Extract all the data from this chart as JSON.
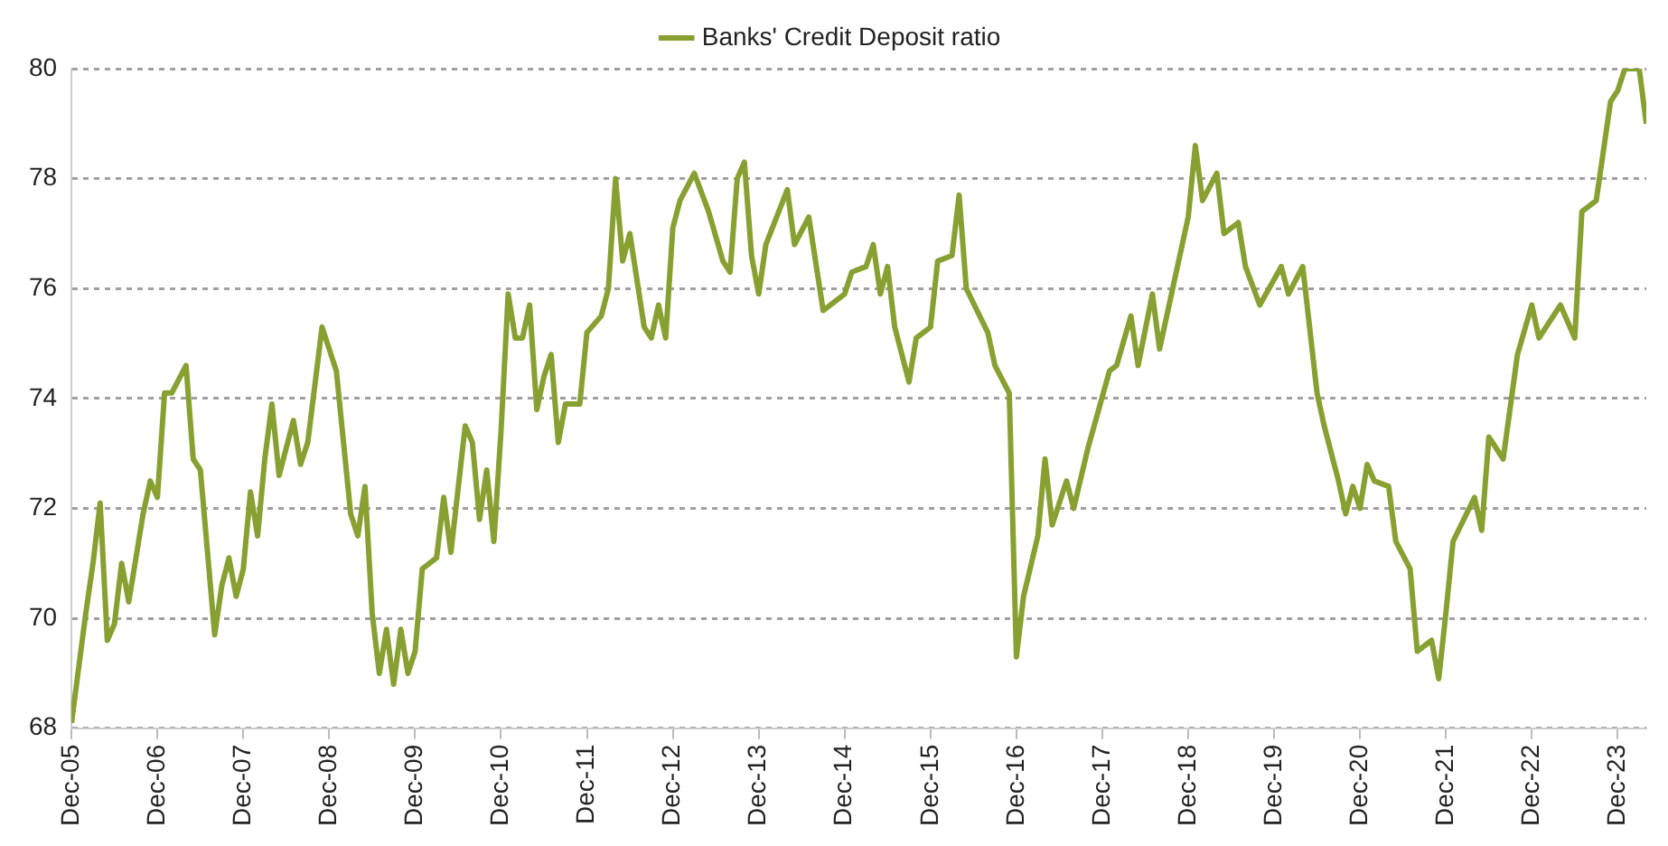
{
  "chart_data": {
    "type": "line",
    "legend": "top",
    "grid": "y",
    "marker": "none",
    "line_style": "solid",
    "x": [
      "2005-12",
      "2006-02",
      "2006-03",
      "2006-04",
      "2006-05",
      "2006-06",
      "2006-07",
      "2006-08",
      "2006-10",
      "2006-11",
      "2006-12",
      "2007-01",
      "2007-02",
      "2007-04",
      "2007-05",
      "2007-06",
      "2007-08",
      "2007-09",
      "2007-10",
      "2007-11",
      "2007-12",
      "2008-01",
      "2008-02",
      "2008-03",
      "2008-04",
      "2008-05",
      "2008-07",
      "2008-08",
      "2008-09",
      "2008-11",
      "2008-12",
      "2009-01",
      "2009-03",
      "2009-04",
      "2009-05",
      "2009-06",
      "2009-07",
      "2009-08",
      "2009-09",
      "2009-10",
      "2009-11",
      "2009-12",
      "2010-01",
      "2010-03",
      "2010-04",
      "2010-05",
      "2010-07",
      "2010-08",
      "2010-09",
      "2010-10",
      "2010-11",
      "2010-12",
      "2011-01",
      "2011-02",
      "2011-03",
      "2011-04",
      "2011-05",
      "2011-06",
      "2011-07",
      "2011-08",
      "2011-09",
      "2011-11",
      "2011-12",
      "2012-02",
      "2012-03",
      "2012-04",
      "2012-05",
      "2012-06",
      "2012-08",
      "2012-09",
      "2012-10",
      "2012-11",
      "2012-12",
      "2013-01",
      "2013-03",
      "2013-05",
      "2013-07",
      "2013-08",
      "2013-09",
      "2013-10",
      "2013-11",
      "2013-12",
      "2014-01",
      "2014-04",
      "2014-05",
      "2014-07",
      "2014-09",
      "2014-12",
      "2015-01",
      "2015-03",
      "2015-04",
      "2015-05",
      "2015-06",
      "2015-07",
      "2015-09",
      "2015-10",
      "2015-12",
      "2016-01",
      "2016-03",
      "2016-04",
      "2016-05",
      "2016-08",
      "2016-09",
      "2016-11",
      "2016-12",
      "2017-01",
      "2017-03",
      "2017-04",
      "2017-05",
      "2017-07",
      "2017-08",
      "2017-10",
      "2018-01",
      "2018-02",
      "2018-04",
      "2018-05",
      "2018-07",
      "2018-08",
      "2018-10",
      "2018-12",
      "2019-01",
      "2019-02",
      "2019-04",
      "2019-05",
      "2019-07",
      "2019-08",
      "2019-10",
      "2020-01",
      "2020-02",
      "2020-04",
      "2020-06",
      "2020-07",
      "2020-09",
      "2020-10",
      "2020-11",
      "2020-12",
      "2021-01",
      "2021-02",
      "2021-04",
      "2021-05",
      "2021-07",
      "2021-08",
      "2021-10",
      "2021-11",
      "2021-12",
      "2022-01",
      "2022-04",
      "2022-05",
      "2022-06",
      "2022-08",
      "2022-10",
      "2022-12",
      "2023-01",
      "2023-04",
      "2023-06",
      "2023-07",
      "2023-09",
      "2023-10",
      "2023-11",
      "2023-12",
      "2024-01",
      "2024-03",
      "2024-04"
    ],
    "series": [
      {
        "name": "Banks' Credit Deposit ratio",
        "color": "#88a031",
        "values": [
          68.1,
          70.1,
          71.0,
          72.1,
          69.6,
          69.9,
          71.0,
          70.3,
          71.9,
          72.5,
          72.2,
          74.1,
          74.1,
          74.6,
          72.9,
          72.7,
          69.7,
          70.6,
          71.1,
          70.4,
          70.9,
          72.3,
          71.5,
          72.9,
          73.9,
          72.6,
          73.6,
          72.8,
          73.2,
          75.3,
          74.9,
          74.5,
          71.9,
          71.5,
          72.4,
          70.1,
          69.0,
          69.8,
          68.8,
          69.8,
          69.0,
          69.4,
          70.9,
          71.1,
          72.2,
          71.2,
          73.5,
          73.2,
          71.8,
          72.7,
          71.4,
          73.4,
          75.9,
          75.1,
          75.1,
          75.7,
          73.8,
          74.4,
          74.8,
          73.2,
          73.9,
          73.9,
          75.2,
          75.5,
          76.0,
          78.0,
          76.5,
          77.0,
          75.3,
          75.1,
          75.7,
          75.1,
          77.1,
          77.6,
          78.1,
          77.4,
          76.5,
          76.3,
          78.0,
          78.3,
          76.6,
          75.9,
          76.8,
          77.8,
          76.8,
          77.3,
          75.6,
          75.9,
          76.3,
          76.4,
          76.8,
          75.9,
          76.4,
          75.3,
          74.3,
          75.1,
          75.3,
          76.5,
          76.6,
          77.7,
          76.0,
          75.2,
          74.6,
          74.1,
          69.3,
          70.4,
          71.5,
          72.9,
          71.7,
          72.5,
          72.0,
          73.1,
          74.5,
          74.6,
          75.5,
          74.6,
          75.9,
          74.9,
          76.1,
          77.3,
          78.6,
          77.6,
          78.1,
          77.0,
          77.2,
          76.4,
          75.7,
          76.4,
          75.9,
          76.4,
          74.1,
          73.5,
          72.5,
          71.9,
          72.4,
          72.0,
          72.8,
          72.5,
          72.4,
          71.4,
          70.9,
          69.4,
          69.6,
          68.9,
          70.1,
          71.4,
          72.2,
          71.6,
          73.3,
          72.9,
          74.8,
          75.7,
          75.1,
          75.7,
          75.1,
          77.4,
          77.6,
          78.5,
          79.4,
          79.6,
          80.0,
          80.0,
          79.0
        ]
      }
    ],
    "xlim": [
      "2005-12",
      "2024-04"
    ],
    "xticks": [
      {
        "value": "2005-12",
        "label": "Dec-05"
      },
      {
        "value": "2006-12",
        "label": "Dec-06"
      },
      {
        "value": "2007-12",
        "label": "Dec-07"
      },
      {
        "value": "2008-12",
        "label": "Dec-08"
      },
      {
        "value": "2009-12",
        "label": "Dec-09"
      },
      {
        "value": "2010-12",
        "label": "Dec-10"
      },
      {
        "value": "2011-12",
        "label": "Dec-11"
      },
      {
        "value": "2012-12",
        "label": "Dec-12"
      },
      {
        "value": "2013-12",
        "label": "Dec-13"
      },
      {
        "value": "2014-12",
        "label": "Dec-14"
      },
      {
        "value": "2015-12",
        "label": "Dec-15"
      },
      {
        "value": "2016-12",
        "label": "Dec-16"
      },
      {
        "value": "2017-12",
        "label": "Dec-17"
      },
      {
        "value": "2018-12",
        "label": "Dec-18"
      },
      {
        "value": "2019-12",
        "label": "Dec-19"
      },
      {
        "value": "2020-12",
        "label": "Dec-20"
      },
      {
        "value": "2021-12",
        "label": "Dec-21"
      },
      {
        "value": "2022-12",
        "label": "Dec-22"
      },
      {
        "value": "2023-12",
        "label": "Dec-23"
      }
    ],
    "ylim": [
      68,
      80
    ],
    "yticks": [
      68,
      70,
      72,
      74,
      76,
      78,
      80
    ]
  }
}
